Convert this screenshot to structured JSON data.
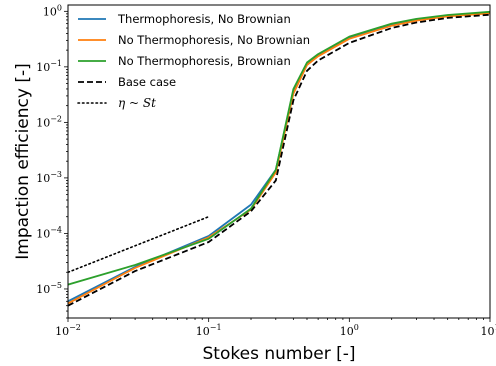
{
  "chart_data": {
    "type": "line",
    "xlabel": "Stokes number [-]",
    "ylabel": "Impaction efficiency [-]",
    "xscale": "log",
    "yscale": "log",
    "xlim": [
      0.01,
      10
    ],
    "ylim": [
      3e-06,
      1.3
    ],
    "grid": false,
    "legend_position": "top-left",
    "x_tick_labels": [
      {
        "value": 0.01,
        "base": "10",
        "exp": "−2"
      },
      {
        "value": 0.1,
        "base": "10",
        "exp": "−1"
      },
      {
        "value": 1,
        "base": "10",
        "exp": "0"
      },
      {
        "value": 10,
        "base": "10",
        "exp": "1"
      }
    ],
    "y_tick_labels": [
      {
        "value": 1e-05,
        "base": "10",
        "exp": "−5"
      },
      {
        "value": 0.0001,
        "base": "10",
        "exp": "−4"
      },
      {
        "value": 0.001,
        "base": "10",
        "exp": "−3"
      },
      {
        "value": 0.01,
        "base": "10",
        "exp": "−2"
      },
      {
        "value": 0.1,
        "base": "10",
        "exp": "−1"
      },
      {
        "value": 1,
        "base": "10",
        "exp": "0"
      }
    ],
    "series": [
      {
        "name": "Thermophoresis, No Brownian",
        "color": "#1f77b4",
        "dash": "solid",
        "x": [
          0.01,
          0.03,
          0.1,
          0.2,
          0.3,
          0.4,
          0.5,
          0.6,
          1,
          2,
          3,
          5,
          10
        ],
        "y": [
          6e-06,
          2.5e-05,
          9e-05,
          0.00033,
          0.0014,
          0.035,
          0.11,
          0.16,
          0.33,
          0.57,
          0.7,
          0.83,
          0.95
        ]
      },
      {
        "name": "No Thermophoresis, No Brownian",
        "color": "#ff7f0e",
        "dash": "solid",
        "x": [
          0.01,
          0.03,
          0.1,
          0.2,
          0.3,
          0.4,
          0.5,
          0.6,
          1,
          2,
          3,
          5,
          10
        ],
        "y": [
          5.5e-06,
          2.4e-05,
          8.5e-05,
          0.00027,
          0.00125,
          0.033,
          0.108,
          0.155,
          0.32,
          0.55,
          0.68,
          0.81,
          0.92
        ]
      },
      {
        "name": "No Thermophoresis, Brownian",
        "color": "#2ca02c",
        "dash": "solid",
        "x": [
          0.01,
          0.03,
          0.1,
          0.2,
          0.3,
          0.4,
          0.5,
          0.6,
          1,
          2,
          3,
          5,
          10
        ],
        "y": [
          1.2e-05,
          2.7e-05,
          8e-05,
          0.00028,
          0.0014,
          0.04,
          0.12,
          0.17,
          0.35,
          0.6,
          0.73,
          0.86,
          0.98
        ]
      },
      {
        "name": "Base case",
        "color": "#000000",
        "dash": "dashed",
        "x": [
          0.01,
          0.03,
          0.1,
          0.2,
          0.3,
          0.4,
          0.5,
          0.6,
          1,
          2,
          3,
          5,
          10
        ],
        "y": [
          5e-06,
          2.1e-05,
          7e-05,
          0.00025,
          0.0009,
          0.025,
          0.085,
          0.13,
          0.27,
          0.5,
          0.63,
          0.76,
          0.87
        ]
      },
      {
        "name": "η ~ St",
        "color": "#000000",
        "dash": "dotted",
        "x": [
          0.01,
          0.1
        ],
        "y": [
          2e-05,
          0.0002
        ]
      }
    ]
  }
}
